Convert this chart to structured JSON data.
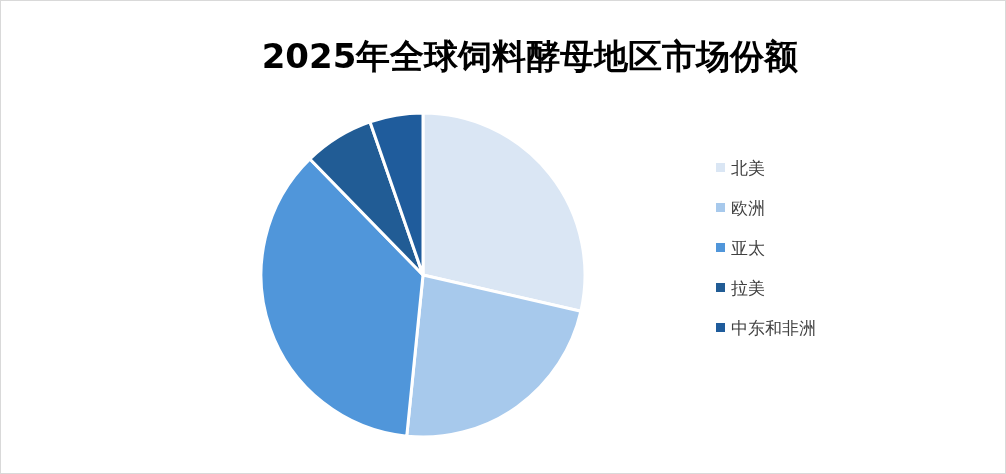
{
  "chart_data": {
    "type": "pie",
    "title": "2025年全球饲料酵母地区市场份额",
    "categories": [
      "北美",
      "欧洲",
      "亚太",
      "拉美",
      "中东和非洲"
    ],
    "values": [
      28.6,
      23.0,
      36.1,
      7.0,
      5.3
    ],
    "colors": [
      "#dae6f4",
      "#a7c9ec",
      "#5096da",
      "#215c95",
      "#1f5c9c"
    ],
    "legend": "right"
  }
}
